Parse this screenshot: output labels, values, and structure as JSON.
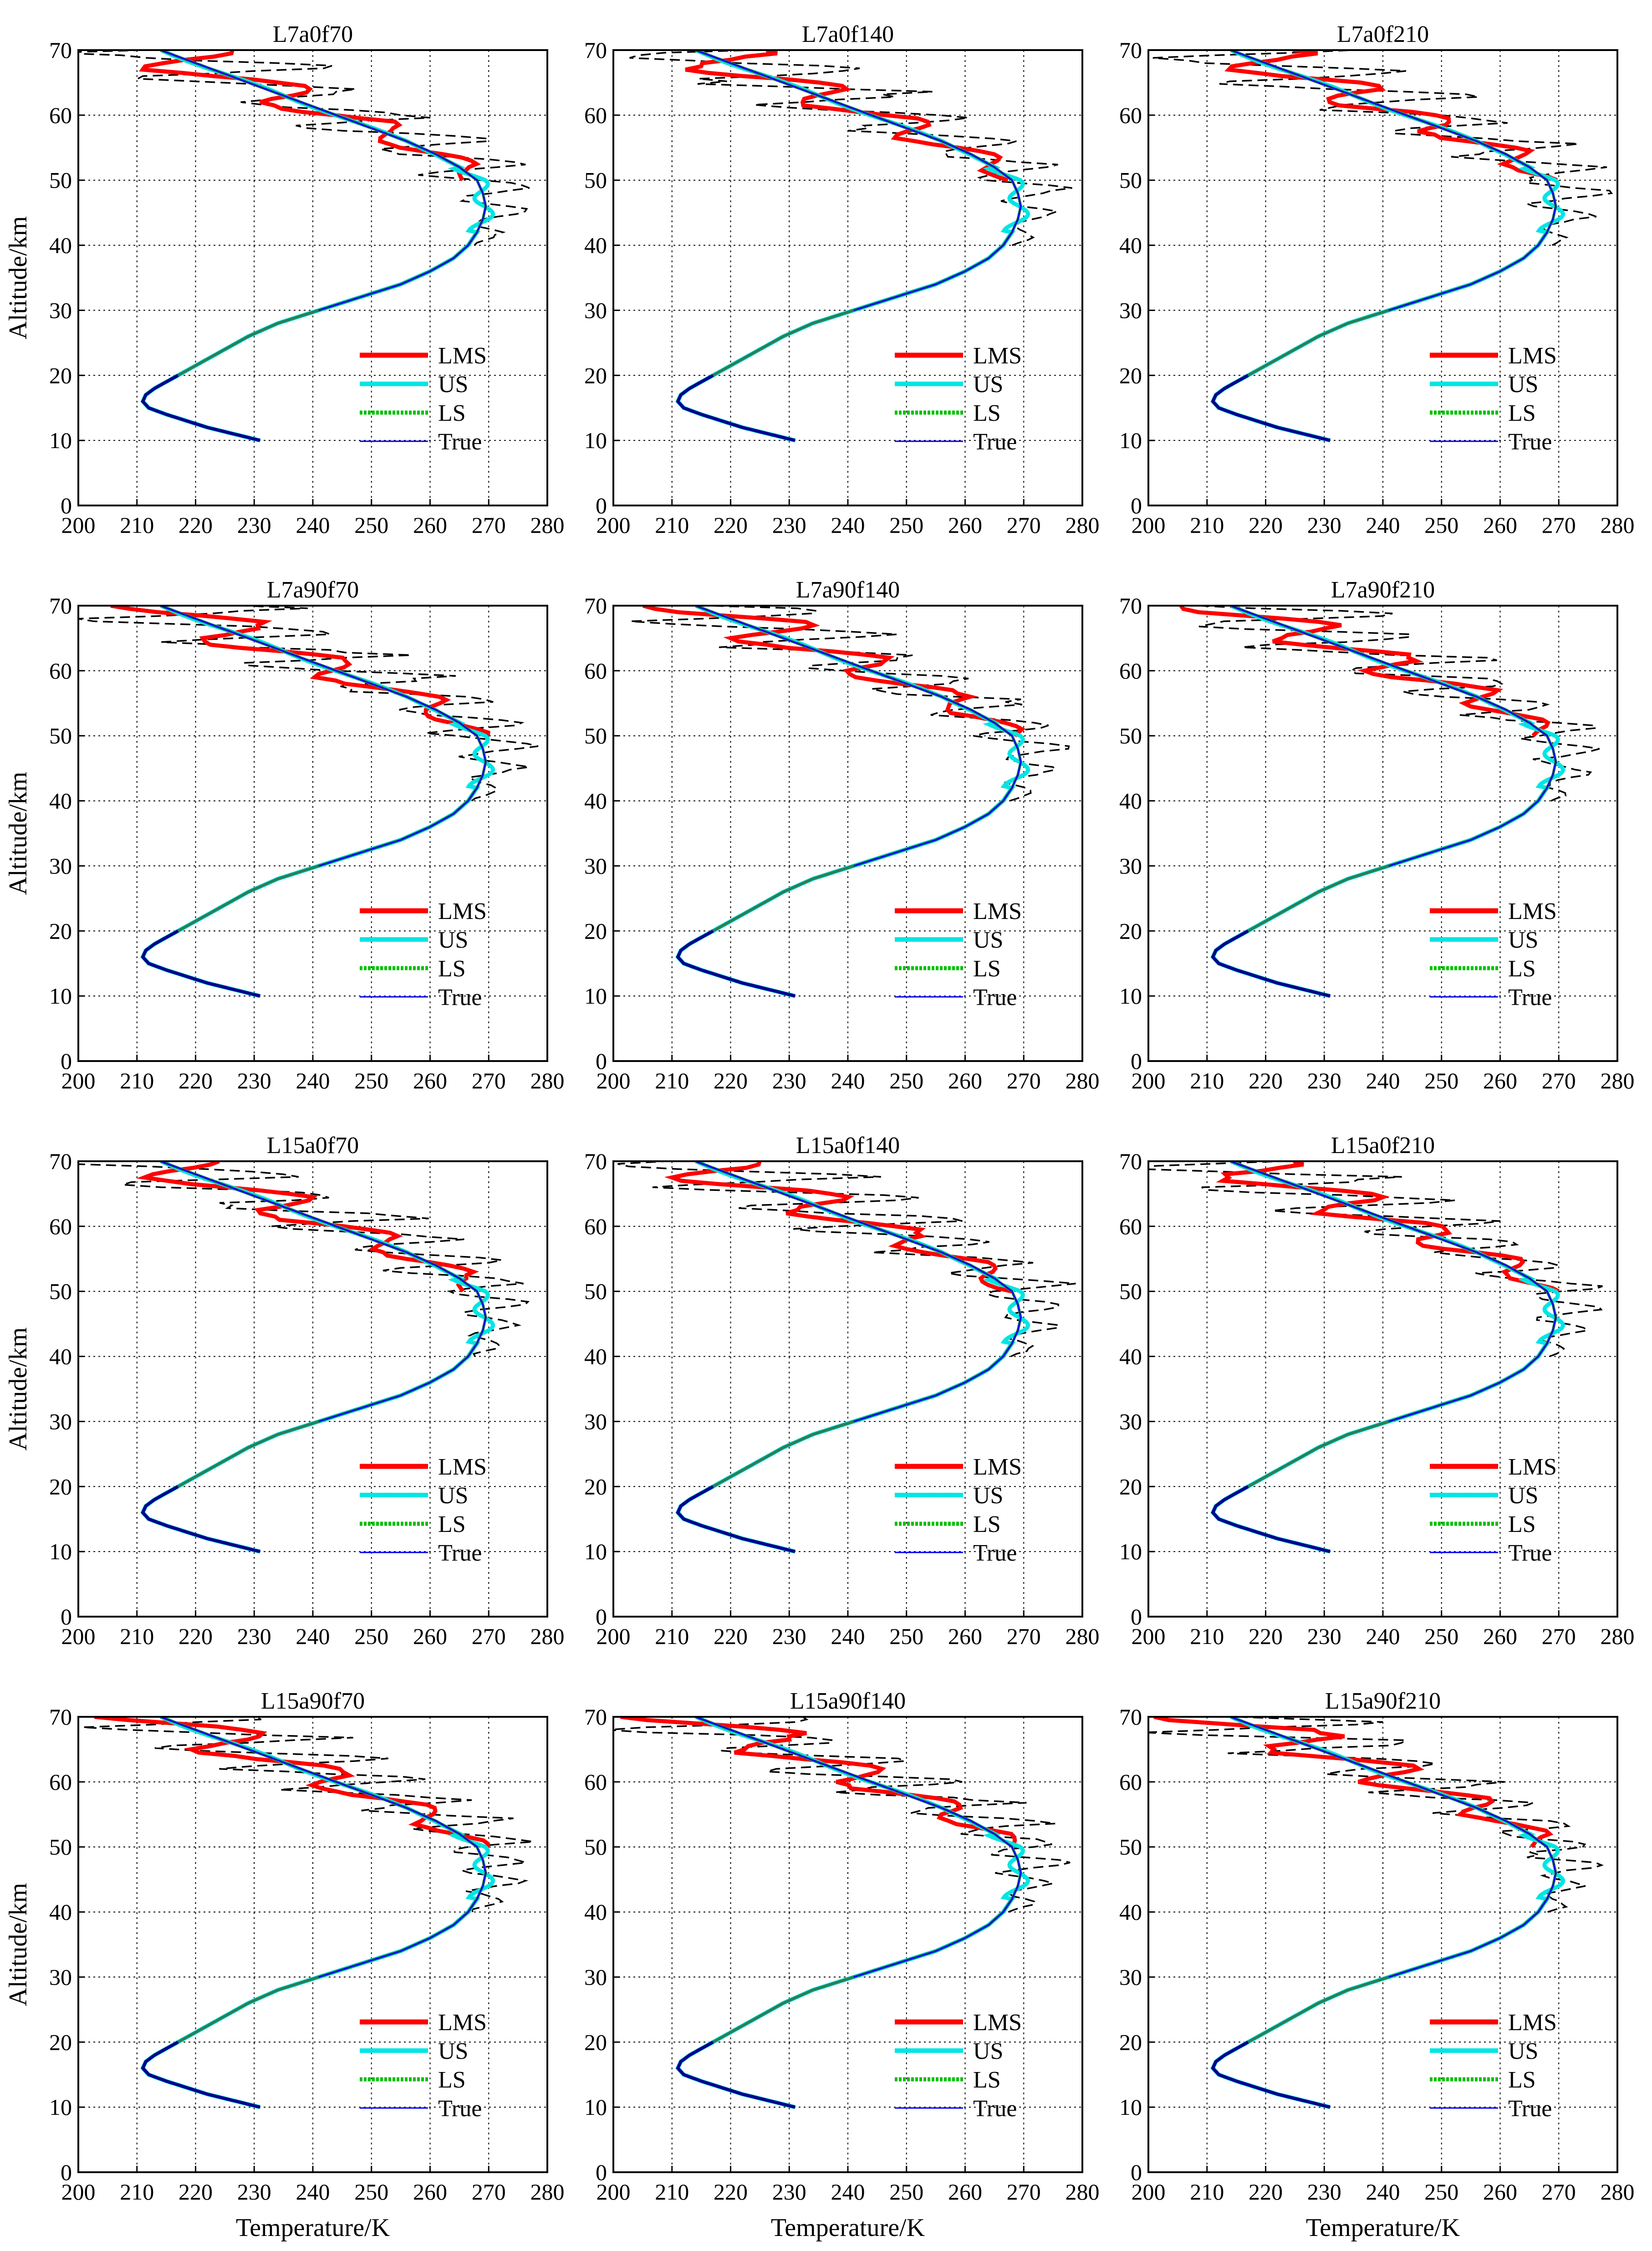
{
  "figure": {
    "ylabel": "Altitude/km",
    "xlabel": "Temperature/K"
  },
  "colors": {
    "LMS": "#ff0000",
    "US": "#00e5e5",
    "LS": "#00c000",
    "True": "#0000ff",
    "LS_underlay": "#2e7d52",
    "dashed": "#000000"
  },
  "chart_data": [
    {
      "type": "line",
      "title": "L7a0f70",
      "xlim": [
        200,
        280
      ],
      "ylim": [
        0,
        70
      ],
      "xticks": [
        200,
        210,
        220,
        230,
        240,
        250,
        260,
        270,
        280
      ],
      "yticks": [
        0,
        10,
        20,
        30,
        40,
        50,
        60,
        70
      ],
      "legend": [
        "LMS",
        "US",
        "LS",
        "True"
      ],
      "legend_position": "bottom-right",
      "grid": true,
      "dashed_series": "reference",
      "series": [
        {
          "name": "LMS",
          "profile": "a",
          "seed": 1
        },
        {
          "name": "US",
          "profile": "a",
          "seed": 1
        },
        {
          "name": "LS",
          "profile": "a",
          "seed": 1
        },
        {
          "name": "True",
          "profile": "a",
          "seed": 1
        }
      ]
    },
    {
      "type": "line",
      "title": "L7a0f140",
      "xlim": [
        200,
        280
      ],
      "ylim": [
        0,
        70
      ],
      "xticks": [
        200,
        210,
        220,
        230,
        240,
        250,
        260,
        270,
        280
      ],
      "yticks": [
        0,
        10,
        20,
        30,
        40,
        50,
        60,
        70
      ],
      "legend": [
        "LMS",
        "US",
        "LS",
        "True"
      ],
      "legend_position": "bottom-right",
      "grid": true,
      "dashed_series": "reference",
      "series": [
        {
          "name": "LMS",
          "profile": "b",
          "seed": 2
        },
        {
          "name": "US",
          "profile": "b",
          "seed": 2
        },
        {
          "name": "LS",
          "profile": "b",
          "seed": 2
        },
        {
          "name": "True",
          "profile": "b",
          "seed": 2
        }
      ]
    },
    {
      "type": "line",
      "title": "L7a0f210",
      "xlim": [
        200,
        280
      ],
      "ylim": [
        0,
        70
      ],
      "xticks": [
        200,
        210,
        220,
        230,
        240,
        250,
        260,
        270,
        280
      ],
      "yticks": [
        0,
        10,
        20,
        30,
        40,
        50,
        60,
        70
      ],
      "legend": [
        "LMS",
        "US",
        "LS",
        "True"
      ],
      "legend_position": "bottom-right",
      "grid": true,
      "dashed_series": "reference",
      "series": [
        {
          "name": "LMS",
          "profile": "c",
          "seed": 3
        },
        {
          "name": "US",
          "profile": "c",
          "seed": 3
        },
        {
          "name": "LS",
          "profile": "c",
          "seed": 3
        },
        {
          "name": "True",
          "profile": "c",
          "seed": 3
        }
      ]
    },
    {
      "type": "line",
      "title": "L7a90f70",
      "xlim": [
        200,
        280
      ],
      "ylim": [
        0,
        70
      ],
      "xticks": [
        200,
        210,
        220,
        230,
        240,
        250,
        260,
        270,
        280
      ],
      "yticks": [
        0,
        10,
        20,
        30,
        40,
        50,
        60,
        70
      ],
      "legend": [
        "LMS",
        "US",
        "LS",
        "True"
      ],
      "legend_position": "bottom-right",
      "grid": true,
      "dashed_series": "reference",
      "series": [
        {
          "name": "LMS",
          "profile": "a",
          "seed": 4
        },
        {
          "name": "US",
          "profile": "a",
          "seed": 4
        },
        {
          "name": "LS",
          "profile": "a",
          "seed": 4
        },
        {
          "name": "True",
          "profile": "a",
          "seed": 4
        }
      ]
    },
    {
      "type": "line",
      "title": "L7a90f140",
      "xlim": [
        200,
        280
      ],
      "ylim": [
        0,
        70
      ],
      "xticks": [
        200,
        210,
        220,
        230,
        240,
        250,
        260,
        270,
        280
      ],
      "yticks": [
        0,
        10,
        20,
        30,
        40,
        50,
        60,
        70
      ],
      "legend": [
        "LMS",
        "US",
        "LS",
        "True"
      ],
      "legend_position": "bottom-right",
      "grid": true,
      "dashed_series": "reference",
      "series": [
        {
          "name": "LMS",
          "profile": "b",
          "seed": 5
        },
        {
          "name": "US",
          "profile": "b",
          "seed": 5
        },
        {
          "name": "LS",
          "profile": "b",
          "seed": 5
        },
        {
          "name": "True",
          "profile": "b",
          "seed": 5
        }
      ]
    },
    {
      "type": "line",
      "title": "L7a90f210",
      "xlim": [
        200,
        280
      ],
      "ylim": [
        0,
        70
      ],
      "xticks": [
        200,
        210,
        220,
        230,
        240,
        250,
        260,
        270,
        280
      ],
      "yticks": [
        0,
        10,
        20,
        30,
        40,
        50,
        60,
        70
      ],
      "legend": [
        "LMS",
        "US",
        "LS",
        "True"
      ],
      "legend_position": "bottom-right",
      "grid": true,
      "dashed_series": "reference",
      "series": [
        {
          "name": "LMS",
          "profile": "c",
          "seed": 6
        },
        {
          "name": "US",
          "profile": "c",
          "seed": 6
        },
        {
          "name": "LS",
          "profile": "c",
          "seed": 6
        },
        {
          "name": "True",
          "profile": "c",
          "seed": 6
        }
      ]
    },
    {
      "type": "line",
      "title": "L15a0f70",
      "xlim": [
        200,
        280
      ],
      "ylim": [
        0,
        70
      ],
      "xticks": [
        200,
        210,
        220,
        230,
        240,
        250,
        260,
        270,
        280
      ],
      "yticks": [
        0,
        10,
        20,
        30,
        40,
        50,
        60,
        70
      ],
      "legend": [
        "LMS",
        "US",
        "LS",
        "True"
      ],
      "legend_position": "bottom-right",
      "grid": true,
      "dashed_series": "reference",
      "series": [
        {
          "name": "LMS",
          "profile": "a",
          "seed": 7
        },
        {
          "name": "US",
          "profile": "a",
          "seed": 7
        },
        {
          "name": "LS",
          "profile": "a",
          "seed": 7
        },
        {
          "name": "True",
          "profile": "a",
          "seed": 7
        }
      ]
    },
    {
      "type": "line",
      "title": "L15a0f140",
      "xlim": [
        200,
        280
      ],
      "ylim": [
        0,
        70
      ],
      "xticks": [
        200,
        210,
        220,
        230,
        240,
        250,
        260,
        270,
        280
      ],
      "yticks": [
        0,
        10,
        20,
        30,
        40,
        50,
        60,
        70
      ],
      "legend": [
        "LMS",
        "US",
        "LS",
        "True"
      ],
      "legend_position": "bottom-right",
      "grid": true,
      "dashed_series": "reference",
      "series": [
        {
          "name": "LMS",
          "profile": "b",
          "seed": 8
        },
        {
          "name": "US",
          "profile": "b",
          "seed": 8
        },
        {
          "name": "LS",
          "profile": "b",
          "seed": 8
        },
        {
          "name": "True",
          "profile": "b",
          "seed": 8
        }
      ]
    },
    {
      "type": "line",
      "title": "L15a0f210",
      "xlim": [
        200,
        280
      ],
      "ylim": [
        0,
        70
      ],
      "xticks": [
        200,
        210,
        220,
        230,
        240,
        250,
        260,
        270,
        280
      ],
      "yticks": [
        0,
        10,
        20,
        30,
        40,
        50,
        60,
        70
      ],
      "legend": [
        "LMS",
        "US",
        "LS",
        "True"
      ],
      "legend_position": "bottom-right",
      "grid": true,
      "dashed_series": "reference",
      "series": [
        {
          "name": "LMS",
          "profile": "c",
          "seed": 9
        },
        {
          "name": "US",
          "profile": "c",
          "seed": 9
        },
        {
          "name": "LS",
          "profile": "c",
          "seed": 9
        },
        {
          "name": "True",
          "profile": "c",
          "seed": 9
        }
      ]
    },
    {
      "type": "line",
      "title": "L15a90f70",
      "xlim": [
        200,
        280
      ],
      "ylim": [
        0,
        70
      ],
      "xticks": [
        200,
        210,
        220,
        230,
        240,
        250,
        260,
        270,
        280
      ],
      "yticks": [
        0,
        10,
        20,
        30,
        40,
        50,
        60,
        70
      ],
      "legend": [
        "LMS",
        "US",
        "LS",
        "True"
      ],
      "legend_position": "bottom-right",
      "grid": true,
      "dashed_series": "reference",
      "series": [
        {
          "name": "LMS",
          "profile": "a",
          "seed": 10
        },
        {
          "name": "US",
          "profile": "a",
          "seed": 10
        },
        {
          "name": "LS",
          "profile": "a",
          "seed": 10
        },
        {
          "name": "True",
          "profile": "a",
          "seed": 10
        }
      ]
    },
    {
      "type": "line",
      "title": "L15a90f140",
      "xlim": [
        200,
        280
      ],
      "ylim": [
        0,
        70
      ],
      "xticks": [
        200,
        210,
        220,
        230,
        240,
        250,
        260,
        270,
        280
      ],
      "yticks": [
        0,
        10,
        20,
        30,
        40,
        50,
        60,
        70
      ],
      "legend": [
        "LMS",
        "US",
        "LS",
        "True"
      ],
      "legend_position": "bottom-right",
      "grid": true,
      "dashed_series": "reference",
      "series": [
        {
          "name": "LMS",
          "profile": "b",
          "seed": 11
        },
        {
          "name": "US",
          "profile": "b",
          "seed": 11
        },
        {
          "name": "LS",
          "profile": "b",
          "seed": 11
        },
        {
          "name": "True",
          "profile": "b",
          "seed": 11
        }
      ]
    },
    {
      "type": "line",
      "title": "L15a90f210",
      "xlim": [
        200,
        280
      ],
      "ylim": [
        0,
        70
      ],
      "xticks": [
        200,
        210,
        220,
        230,
        240,
        250,
        260,
        270,
        280
      ],
      "yticks": [
        0,
        10,
        20,
        30,
        40,
        50,
        60,
        70
      ],
      "legend": [
        "LMS",
        "US",
        "LS",
        "True"
      ],
      "legend_position": "bottom-right",
      "grid": true,
      "dashed_series": "reference",
      "series": [
        {
          "name": "LMS",
          "profile": "c",
          "seed": 12
        },
        {
          "name": "US",
          "profile": "c",
          "seed": 12
        },
        {
          "name": "LS",
          "profile": "c",
          "seed": 12
        },
        {
          "name": "True",
          "profile": "c",
          "seed": 12
        }
      ]
    }
  ],
  "true_profile": {
    "altitudes": [
      10,
      12,
      14,
      15,
      16,
      17,
      18,
      20,
      22,
      24,
      26,
      28,
      30,
      32,
      34,
      36,
      38,
      40,
      42,
      44,
      46,
      48,
      50,
      52,
      54,
      56,
      58,
      60,
      62,
      64,
      66,
      68,
      70
    ],
    "temperatures": [
      231,
      222,
      215,
      212,
      211,
      211.5,
      213,
      217,
      221,
      225,
      229,
      234,
      241,
      248,
      255,
      260,
      264,
      266.5,
      268,
      269,
      269.5,
      269,
      268,
      265,
      261,
      256,
      250,
      244,
      238,
      232,
      226,
      220,
      214
    ]
  }
}
